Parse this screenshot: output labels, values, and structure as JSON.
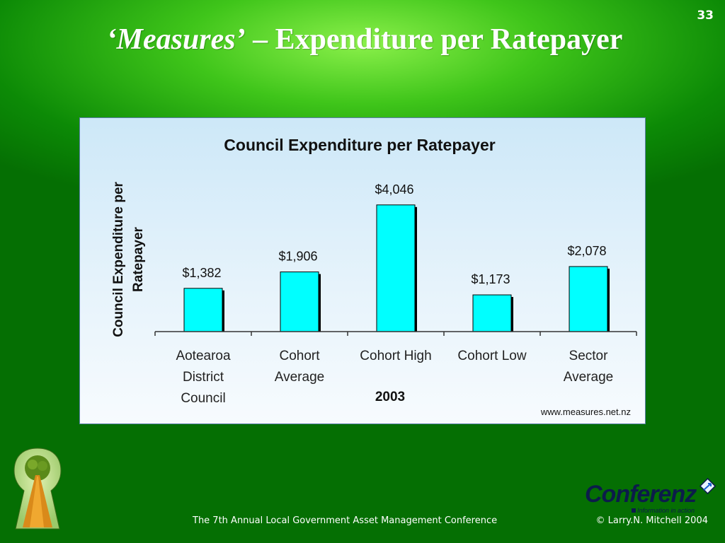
{
  "slide": {
    "number": "33",
    "title_em": "‘Measures’",
    "title_rest": " – Expenditure per Ratepayer"
  },
  "chart_data": {
    "type": "bar",
    "title": "Council Expenditure per Ratepayer",
    "ylabel": "Council Expenditure per Ratepayer",
    "xlabel": "2003",
    "categories": [
      [
        "Aotearoa",
        "District",
        "Council"
      ],
      [
        "Cohort",
        "Average"
      ],
      [
        "Cohort High"
      ],
      [
        "Cohort Low"
      ],
      [
        "Sector",
        "Average"
      ]
    ],
    "values": [
      1382,
      1906,
      4046,
      1173,
      2078
    ],
    "data_labels": [
      "$1,382",
      "$1,906",
      "$4,046",
      "$1,173",
      "$2,078"
    ],
    "ylim": [
      0,
      4200
    ],
    "grid": false,
    "bar_color": "#00ffff",
    "source": "www.measures.net.nz"
  },
  "footer": {
    "conference": "The 7th Annual Local Government Asset Management Conference",
    "copyright": "© Larry.N. Mitchell 2004"
  },
  "brand": {
    "name": "Conferenz",
    "tagline": "Information in action",
    "registered": "®"
  },
  "logo_icon": "tree-keyhole-icon",
  "brand_icon": "diamond-arrow-icon"
}
